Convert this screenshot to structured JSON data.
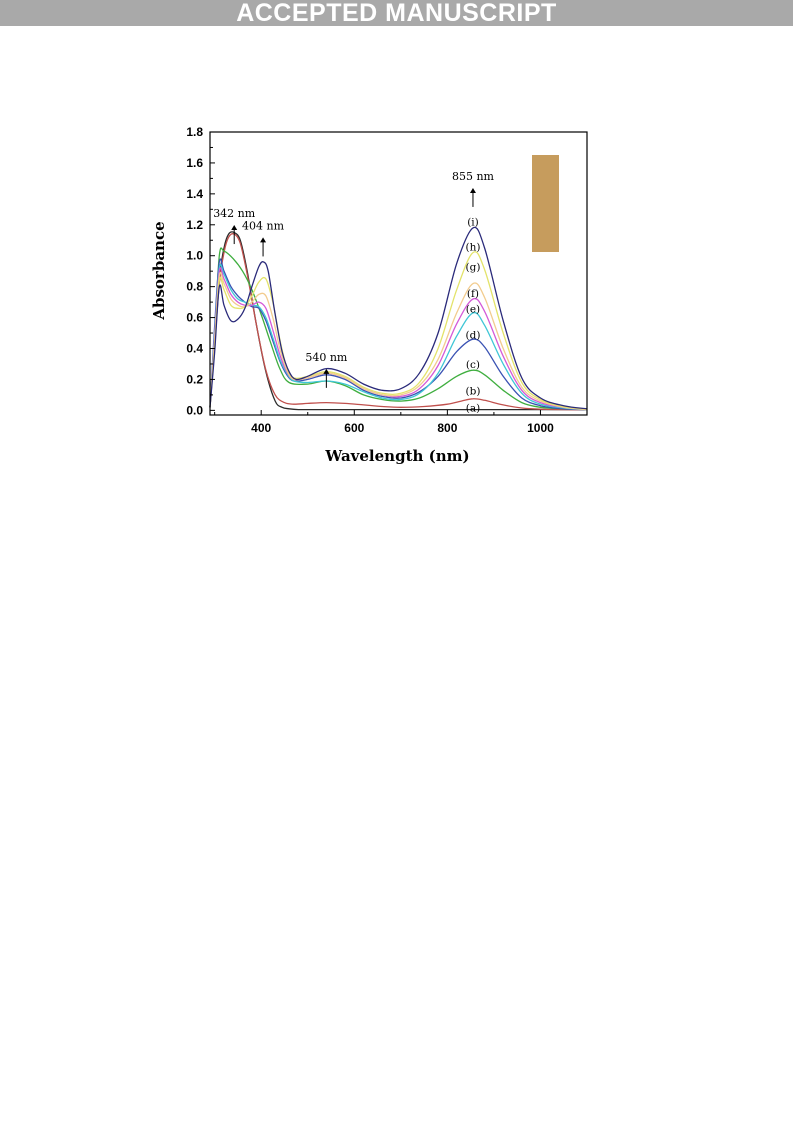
{
  "banner": {
    "text": "ACCEPTED MANUSCRIPT"
  },
  "chart_data": {
    "type": "line",
    "xlabel": "Wavelength (nm)",
    "ylabel": "Absorbance",
    "xlim": [
      290,
      1100
    ],
    "ylim": [
      -0.03,
      1.8
    ],
    "x_ticks": [
      400,
      600,
      800,
      1000
    ],
    "y_ticks": [
      0.0,
      0.2,
      0.4,
      0.6,
      0.8,
      1.0,
      1.2,
      1.4,
      1.6,
      1.8
    ],
    "grid": false,
    "legend": "none",
    "inset_swatch_color": "#c69c5d",
    "annotations": [
      {
        "text": "342 nm",
        "x": 342,
        "y": 1.25
      },
      {
        "text": "404 nm",
        "x": 404,
        "y": 1.17
      },
      {
        "text": "540 nm",
        "x": 540,
        "y": 0.32
      },
      {
        "text": "855 nm",
        "x": 855,
        "y": 1.49
      }
    ],
    "curve_labels": [
      {
        "text": "(a)",
        "x": 855,
        "y": 0.02
      },
      {
        "text": "(b)",
        "x": 855,
        "y": 0.13
      },
      {
        "text": "(c)",
        "x": 855,
        "y": 0.3
      },
      {
        "text": "(d)",
        "x": 855,
        "y": 0.49
      },
      {
        "text": "(e)",
        "x": 855,
        "y": 0.66
      },
      {
        "text": "(f)",
        "x": 855,
        "y": 0.76
      },
      {
        "text": "(g)",
        "x": 855,
        "y": 0.93
      },
      {
        "text": "(h)",
        "x": 855,
        "y": 1.06
      },
      {
        "text": "(i)",
        "x": 855,
        "y": 1.22
      }
    ],
    "series": [
      {
        "color": "#2b2b2b",
        "x": [
          290,
          300,
          310,
          320,
          330,
          342,
          355,
          370,
          390,
          410,
          430,
          445,
          460,
          480,
          520,
          600,
          700,
          800,
          855,
          900,
          1000,
          1100
        ],
        "y": [
          0.02,
          0.45,
          0.85,
          1.05,
          1.14,
          1.15,
          1.1,
          0.9,
          0.55,
          0.25,
          0.06,
          0.02,
          0.01,
          0.005,
          0.005,
          0.005,
          0.005,
          0.005,
          0.005,
          0.005,
          0.005,
          0.005
        ]
      },
      {
        "color": "#c0504d",
        "x": [
          290,
          300,
          310,
          320,
          330,
          342,
          355,
          370,
          390,
          410,
          430,
          450,
          470,
          500,
          540,
          580,
          620,
          660,
          700,
          750,
          800,
          830,
          855,
          880,
          920,
          960,
          1000,
          1050,
          1100
        ],
        "y": [
          0.02,
          0.42,
          0.82,
          1.02,
          1.12,
          1.14,
          1.08,
          0.88,
          0.55,
          0.26,
          0.1,
          0.05,
          0.04,
          0.045,
          0.05,
          0.045,
          0.035,
          0.025,
          0.02,
          0.025,
          0.04,
          0.06,
          0.075,
          0.065,
          0.035,
          0.015,
          0.008,
          0.005,
          0.003
        ]
      },
      {
        "color": "#3fae3f",
        "x": [
          290,
          300,
          310,
          320,
          340,
          360,
          380,
          400,
          420,
          440,
          460,
          500,
          540,
          580,
          620,
          660,
          700,
          740,
          780,
          820,
          855,
          880,
          920,
          960,
          1000,
          1050,
          1100
        ],
        "y": [
          0.02,
          0.5,
          1.0,
          1.03,
          0.98,
          0.9,
          0.78,
          0.62,
          0.44,
          0.27,
          0.18,
          0.17,
          0.19,
          0.16,
          0.1,
          0.07,
          0.06,
          0.08,
          0.14,
          0.22,
          0.26,
          0.23,
          0.13,
          0.05,
          0.02,
          0.01,
          0.005
        ]
      },
      {
        "color": "#3a52b3",
        "x": [
          290,
          300,
          310,
          320,
          335,
          350,
          365,
          380,
          395,
          410,
          425,
          440,
          455,
          470,
          500,
          540,
          580,
          620,
          660,
          700,
          740,
          780,
          820,
          855,
          880,
          920,
          960,
          1000,
          1050,
          1100
        ],
        "y": [
          0.02,
          0.55,
          0.96,
          0.9,
          0.8,
          0.74,
          0.7,
          0.67,
          0.66,
          0.58,
          0.45,
          0.32,
          0.23,
          0.19,
          0.2,
          0.23,
          0.2,
          0.13,
          0.09,
          0.08,
          0.12,
          0.22,
          0.38,
          0.46,
          0.41,
          0.22,
          0.08,
          0.03,
          0.01,
          0.005
        ]
      },
      {
        "color": "#3fc6d6",
        "x": [
          290,
          300,
          310,
          320,
          335,
          350,
          365,
          380,
          395,
          410,
          425,
          440,
          455,
          470,
          500,
          540,
          580,
          620,
          660,
          700,
          740,
          780,
          820,
          855,
          880,
          920,
          960,
          1000,
          1050,
          1100
        ],
        "y": [
          0.02,
          0.5,
          0.92,
          0.88,
          0.78,
          0.72,
          0.7,
          0.68,
          0.67,
          0.6,
          0.47,
          0.33,
          0.24,
          0.19,
          0.18,
          0.19,
          0.17,
          0.12,
          0.08,
          0.07,
          0.11,
          0.24,
          0.48,
          0.63,
          0.55,
          0.3,
          0.11,
          0.04,
          0.015,
          0.005
        ]
      },
      {
        "color": "#d45ad8",
        "x": [
          290,
          300,
          310,
          320,
          335,
          350,
          365,
          380,
          395,
          410,
          425,
          440,
          455,
          470,
          500,
          540,
          580,
          620,
          660,
          700,
          740,
          780,
          820,
          855,
          880,
          920,
          960,
          1000,
          1050,
          1100
        ],
        "y": [
          0.02,
          0.48,
          0.9,
          0.85,
          0.75,
          0.7,
          0.68,
          0.68,
          0.7,
          0.66,
          0.52,
          0.36,
          0.25,
          0.2,
          0.21,
          0.24,
          0.21,
          0.14,
          0.1,
          0.09,
          0.14,
          0.29,
          0.56,
          0.72,
          0.64,
          0.35,
          0.13,
          0.05,
          0.02,
          0.005
        ]
      },
      {
        "color": "#f2cc8f",
        "x": [
          290,
          300,
          310,
          320,
          335,
          350,
          365,
          380,
          395,
          410,
          425,
          440,
          455,
          470,
          500,
          540,
          580,
          620,
          660,
          700,
          740,
          780,
          820,
          855,
          880,
          920,
          960,
          1000,
          1050,
          1100
        ],
        "y": [
          0.02,
          0.45,
          0.87,
          0.82,
          0.72,
          0.68,
          0.67,
          0.7,
          0.75,
          0.74,
          0.6,
          0.4,
          0.26,
          0.2,
          0.21,
          0.24,
          0.21,
          0.14,
          0.1,
          0.1,
          0.16,
          0.33,
          0.63,
          0.82,
          0.73,
          0.4,
          0.15,
          0.06,
          0.02,
          0.005
        ]
      },
      {
        "color": "#e3e36a",
        "x": [
          290,
          300,
          310,
          320,
          335,
          350,
          365,
          380,
          395,
          410,
          425,
          440,
          455,
          470,
          500,
          540,
          580,
          620,
          660,
          700,
          740,
          780,
          820,
          855,
          880,
          920,
          960,
          1000,
          1050,
          1100
        ],
        "y": [
          0.02,
          0.42,
          0.84,
          0.78,
          0.68,
          0.66,
          0.67,
          0.74,
          0.83,
          0.85,
          0.7,
          0.46,
          0.28,
          0.21,
          0.22,
          0.25,
          0.22,
          0.15,
          0.11,
          0.11,
          0.18,
          0.4,
          0.78,
          1.02,
          0.91,
          0.5,
          0.18,
          0.07,
          0.025,
          0.008
        ]
      },
      {
        "color": "#2a2a7a",
        "x": [
          290,
          300,
          310,
          320,
          335,
          350,
          365,
          380,
          395,
          405,
          415,
          430,
          445,
          460,
          475,
          500,
          540,
          580,
          620,
          660,
          700,
          740,
          780,
          820,
          855,
          880,
          920,
          960,
          1000,
          1050,
          1100
        ],
        "y": [
          0.02,
          0.38,
          0.8,
          0.68,
          0.58,
          0.59,
          0.66,
          0.8,
          0.93,
          0.96,
          0.9,
          0.62,
          0.38,
          0.25,
          0.2,
          0.22,
          0.27,
          0.24,
          0.17,
          0.13,
          0.14,
          0.24,
          0.5,
          0.95,
          1.18,
          1.05,
          0.58,
          0.21,
          0.08,
          0.03,
          0.01
        ]
      }
    ]
  }
}
